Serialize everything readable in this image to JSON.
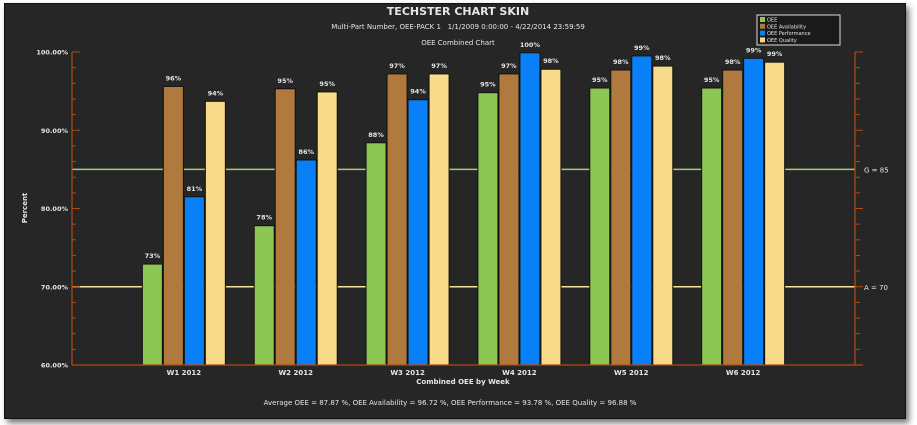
{
  "chart_data": {
    "type": "bar",
    "title": "TECHSTER CHART SKIN",
    "subtitle": "Multi-Part Number, OEE-PACK 1   1/1/2009 0:00:00 - 4/22/2014 23:59:59",
    "subtitle2": "OEE Combined Chart",
    "xlabel": "Combined OEE by Week",
    "ylabel": "Percent",
    "ylim": [
      60,
      100
    ],
    "yticks": [
      "60.00%",
      "70.00%",
      "80.00%",
      "90.00%",
      "100.00%"
    ],
    "ytick_values": [
      60,
      70,
      80,
      90,
      100
    ],
    "categories": [
      "W1 2012",
      "W2 2012",
      "W3 2012",
      "W4 2012",
      "W5 2012",
      "W6 2012"
    ],
    "series": [
      {
        "name": "OEE",
        "color": "#8cc654",
        "values": [
          72.9,
          77.8,
          88.4,
          94.8,
          95.4,
          95.4
        ],
        "labels": [
          "73%",
          "78%",
          "88%",
          "95%",
          "95%",
          "95%"
        ]
      },
      {
        "name": "OEE Availability",
        "color": "#b07a3e",
        "values": [
          95.6,
          95.3,
          97.2,
          97.2,
          97.7,
          97.7
        ],
        "labels": [
          "96%",
          "95%",
          "97%",
          "97%",
          "98%",
          "98%"
        ]
      },
      {
        "name": "OEE Performance",
        "color": "#0a80f8",
        "values": [
          81.5,
          86.2,
          93.9,
          99.9,
          99.5,
          99.2
        ],
        "labels": [
          "81%",
          "86%",
          "94%",
          "100%",
          "99%",
          "99%"
        ]
      },
      {
        "name": "OEE Quality",
        "color": "#f7da8a",
        "values": [
          93.7,
          94.9,
          97.2,
          97.8,
          98.2,
          98.7
        ],
        "labels": [
          "94%",
          "95%",
          "97%",
          "98%",
          "98%",
          "99%"
        ]
      }
    ],
    "reference_lines": [
      {
        "label": "G = 85",
        "value": 85,
        "color": "#9fd36a"
      },
      {
        "label": "A = 70",
        "value": 70,
        "color": "#f3e3a0"
      }
    ],
    "axis_color": "#b44a0c",
    "grid": false,
    "legend": "top-right",
    "footer": "Average OEE = 87.87 %, OEE Availability = 96.72 %, OEE Performance = 93.78 %, OEE Quality = 96.88 %"
  }
}
